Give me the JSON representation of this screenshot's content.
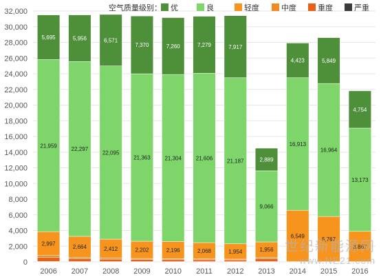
{
  "chart_data": {
    "type": "bar",
    "stacked": true,
    "legend_title": "空气质量级别：",
    "legend_position": "top-right",
    "grid": true,
    "ylim": [
      0,
      32000
    ],
    "y_ticks": [
      "0",
      "2,000",
      "4,000",
      "6,000",
      "8,000",
      "10,000",
      "12,000",
      "14,000",
      "16,000",
      "18,000",
      "20,000",
      "22,000",
      "24,000",
      "26,000",
      "28,000",
      "30,000",
      "32,000"
    ],
    "categories": [
      "2006",
      "2007",
      "2008",
      "2009",
      "2010",
      "2011",
      "2012",
      "2013",
      "2014",
      "2015",
      "2016"
    ],
    "series": [
      {
        "name": "严重",
        "color": "#3a3a3a",
        "values": [
          50,
          40,
          35,
          30,
          30,
          30,
          30,
          40,
          30,
          25,
          20
        ],
        "labels": [
          "",
          "",
          "",
          "",
          "",
          "",
          "",
          "",
          "",
          "",
          ""
        ]
      },
      {
        "name": "重度",
        "color": "#e8611a",
        "values": [
          500,
          350,
          300,
          280,
          250,
          240,
          220,
          350,
          0,
          0,
          0
        ],
        "labels": [
          "",
          "",
          "",
          "",
          "",
          "",
          "",
          "",
          "",
          "",
          ""
        ]
      },
      {
        "name": "中度",
        "color": "#f08a24",
        "values": [
          300,
          200,
          150,
          120,
          120,
          110,
          100,
          200,
          0,
          0,
          0
        ],
        "labels": [
          "",
          "",
          "",
          "",
          "",
          "",
          "",
          "",
          "",
          "",
          ""
        ]
      },
      {
        "name": "轻度",
        "color": "#f7941d",
        "values": [
          2997,
          2664,
          2412,
          2202,
          2196,
          2068,
          1954,
          1956,
          6549,
          5767,
          3867
        ],
        "labels": [
          "2,997",
          "2,664",
          "2,412",
          "2,202",
          "2,196",
          "2,068",
          "1,954",
          "1,956",
          "6,549",
          "5,767",
          "3,867"
        ]
      },
      {
        "name": "良",
        "color": "#7ed66b",
        "values": [
          21959,
          22297,
          22095,
          21363,
          21304,
          21606,
          21187,
          9066,
          16913,
          16964,
          13173
        ],
        "labels": [
          "21,959",
          "22,297",
          "22,095",
          "21,363",
          "21,304",
          "21,606",
          "21,187",
          "9,066",
          "16,913",
          "16,964",
          "13,173"
        ]
      },
      {
        "name": "优",
        "color": "#4e8f3a",
        "values": [
          5695,
          5956,
          6571,
          7370,
          7260,
          7279,
          7917,
          2889,
          4423,
          5849,
          4754
        ],
        "labels": [
          "5,695",
          "5,956",
          "6,571",
          "7,370",
          "7,260",
          "7,279",
          "7,917",
          "2,889",
          "4,423",
          "5,849",
          "4,754"
        ]
      }
    ],
    "legend_order": [
      "优",
      "良",
      "轻度",
      "中度",
      "重度",
      "严重"
    ]
  },
  "watermark": {
    "line1": "世纪新能源网",
    "line2": "www.NE21.com"
  }
}
